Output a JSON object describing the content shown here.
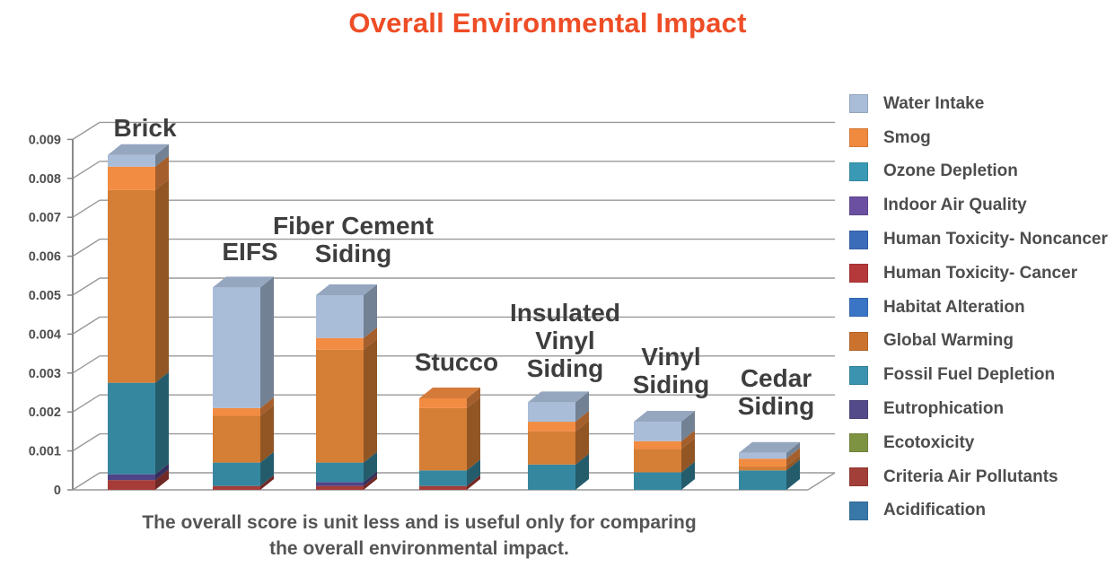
{
  "title": {
    "text": "Overall Environmental Impact",
    "color": "#ee4d26"
  },
  "caption": {
    "line1": "The overall score is unit less and is useful only for comparing",
    "line2": "the overall environmental impact."
  },
  "axis": {
    "y_ticks": [
      "0",
      "0.001",
      "0.002",
      "0.003",
      "0.004",
      "0.005",
      "0.006",
      "0.007",
      "0.008",
      "0.009"
    ]
  },
  "legend": {
    "items": [
      {
        "label": "Water Intake",
        "color": "#a9bcd8"
      },
      {
        "label": "Smog",
        "color": "#f08a3e"
      },
      {
        "label": "Ozone Depletion",
        "color": "#3a9ab5"
      },
      {
        "label": "Indoor Air Quality",
        "color": "#6b4fa0"
      },
      {
        "label": "Human Toxicity- Noncancer",
        "color": "#3a6cba"
      },
      {
        "label": "Human Toxicity- Cancer",
        "color": "#b5383a"
      },
      {
        "label": "Habitat Alteration",
        "color": "#3a74c4"
      },
      {
        "label": "Global Warming",
        "color": "#cb722f"
      },
      {
        "label": "Fossil Fuel Depletion",
        "color": "#3b93af"
      },
      {
        "label": "Eutrophication",
        "color": "#534a8a"
      },
      {
        "label": "Ecotoxicity",
        "color": "#7e9342"
      },
      {
        "label": "Criteria Air Pollutants",
        "color": "#a33f39"
      },
      {
        "label": "Acidification",
        "color": "#3878a8"
      }
    ]
  },
  "chart_data": {
    "type": "bar",
    "subtype": "3d-stacked",
    "title": "Overall Environmental Impact",
    "xlabel": "",
    "ylabel": "",
    "ylim": [
      0,
      0.009
    ],
    "y_tick_step": 0.001,
    "grid": true,
    "legend_position": "right",
    "categories": [
      "Brick",
      "EIFS",
      "Fiber Cement Siding",
      "Stucco",
      "Insulated Vinyl Siding",
      "Vinyl Siding",
      "Cedar Siding"
    ],
    "category_labels": [
      [
        "Brick"
      ],
      [
        "EIFS"
      ],
      [
        "Fiber Cement",
        "Siding"
      ],
      [
        "Stucco"
      ],
      [
        "Insulated",
        "Vinyl",
        "Siding"
      ],
      [
        "Vinyl",
        "Siding"
      ],
      [
        "Cedar",
        "Siding"
      ]
    ],
    "series": [
      {
        "name": "Criteria Air Pollutants",
        "color": "#a63c38",
        "values": [
          0.00025,
          0.0001,
          0.0001,
          0.0001,
          0,
          0,
          0
        ]
      },
      {
        "name": "Eutrophication",
        "color": "#4f4487",
        "values": [
          0.00015,
          0,
          0.0001,
          0,
          0,
          0,
          0
        ]
      },
      {
        "name": "Fossil Fuel Depletion",
        "color": "#35879f",
        "values": [
          0.00235,
          0.0006,
          0.0005,
          0.0004,
          0.00065,
          0.00045,
          0.0005
        ]
      },
      {
        "name": "Global Warming",
        "color": "#d57e35",
        "values": [
          0.00495,
          0.0012,
          0.0029,
          0.0016,
          0.00085,
          0.0006,
          0.0001
        ]
      },
      {
        "name": "Smog",
        "color": "#f28c42",
        "values": [
          0.0006,
          0.0002,
          0.0003,
          0.00025,
          0.00025,
          0.0002,
          0.0002
        ]
      },
      {
        "name": "Water Intake",
        "color": "#a9bdd9",
        "values": [
          0.0003,
          0.0031,
          0.0011,
          0,
          0.0005,
          0.0005,
          0.00015
        ]
      }
    ],
    "bar_totals": [
      0.0086,
      0.0051,
      0.005,
      0.00235,
      0.00225,
      0.00175,
      0.00095
    ],
    "note": "The overall score is unit less and is useful only for comparing the overall environmental impact."
  }
}
